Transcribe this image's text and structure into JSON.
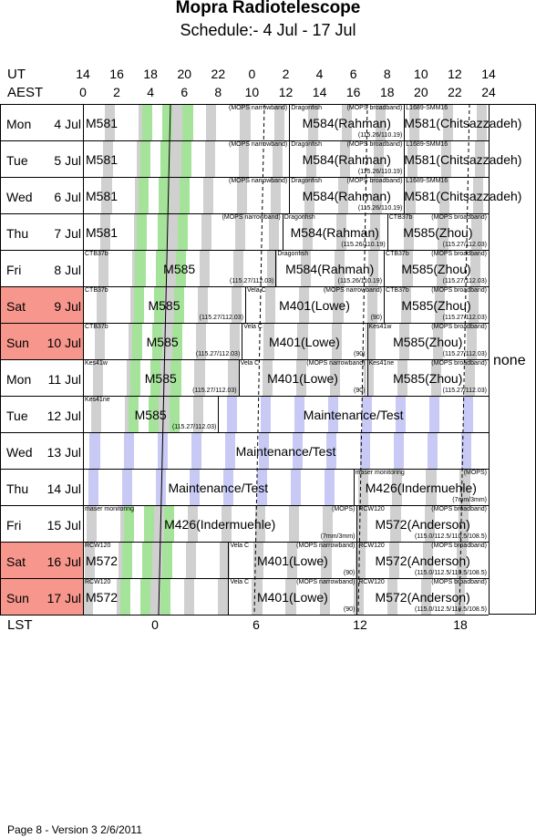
{
  "title": "Mopra Radiotelescope",
  "subtitle": "Schedule:- 4  Jul - 17 Jul",
  "header": {
    "ut_label": "UT",
    "aest_label": "AEST",
    "ut_ticks": [
      "14",
      "16",
      "18",
      "20",
      "22",
      "0",
      "2",
      "4",
      "6",
      "8",
      "10",
      "12",
      "14"
    ],
    "aest_ticks": [
      "0",
      "2",
      "4",
      "6",
      "8",
      "10",
      "12",
      "14",
      "16",
      "18",
      "20",
      "22",
      "24"
    ]
  },
  "colors": {
    "weekend": "#f7968c",
    "green": "#a6e39a",
    "grey": "#d0d0d0",
    "lavender": "#c9c9f5"
  },
  "days": [
    {
      "name": "Mon",
      "date": "4  Jul",
      "weekend": false,
      "segments": [
        {
          "from": 0,
          "to": 12.2,
          "type": "obs",
          "big": "M581",
          "align": "left",
          "tl": "",
          "tr": "(MOPS narrowband)",
          "br": ""
        },
        {
          "from": 12.2,
          "to": 19,
          "type": "obs",
          "big": "M584(Rahman)",
          "tl": "Dragonfish",
          "tr": "(MOPS broadband)",
          "br": "(115.26/110.19)"
        },
        {
          "from": 19,
          "to": 24,
          "type": "obs",
          "big": "M581(Chitsazzadeh)",
          "tl": "L1689-SMM16",
          "tr": "",
          "br": ""
        }
      ]
    },
    {
      "name": "Tue",
      "date": "5  Jul",
      "weekend": false,
      "segments": [
        {
          "from": 0,
          "to": 12.2,
          "type": "obs",
          "big": "M581",
          "align": "left",
          "tl": "",
          "tr": "(MOPS narrowband)",
          "br": ""
        },
        {
          "from": 12.2,
          "to": 19,
          "type": "obs",
          "big": "M584(Rahman)",
          "tl": "Dragonfish",
          "tr": "(MOPS broadband)",
          "br": "(115.26/110.19)"
        },
        {
          "from": 19,
          "to": 24,
          "type": "obs",
          "big": "M581(Chitsazzadeh)",
          "tl": "L1689-SMM16",
          "tr": "",
          "br": ""
        }
      ]
    },
    {
      "name": "Wed",
      "date": "6  Jul",
      "weekend": false,
      "segments": [
        {
          "from": 0,
          "to": 12.2,
          "type": "obs",
          "big": "M581",
          "align": "left",
          "tl": "",
          "tr": "(MOPS narrowband)",
          "br": ""
        },
        {
          "from": 12.2,
          "to": 19,
          "type": "obs",
          "big": "M584(Rahman)",
          "tl": "Dragonfish",
          "tr": "(MOPS broadband)",
          "br": "(115.26/110.19)"
        },
        {
          "from": 19,
          "to": 24,
          "type": "obs",
          "big": "M581(Chitsazzadeh)",
          "tl": "L1689-SMM16",
          "tr": "",
          "br": ""
        }
      ]
    },
    {
      "name": "Thu",
      "date": "7  Jul",
      "weekend": false,
      "segments": [
        {
          "from": 0,
          "to": 11.8,
          "type": "obs",
          "big": "M581",
          "align": "left",
          "tl": "",
          "tr": "(MOPS narrowband)",
          "br": ""
        },
        {
          "from": 11.8,
          "to": 18,
          "type": "obs",
          "big": "M584(Rahman)",
          "tl": "Dragonfish",
          "tr": "",
          "br": "(115.26/110.19)"
        },
        {
          "from": 18,
          "to": 24,
          "type": "obs",
          "big": "M585(Zhou)",
          "tl": "CTB37b",
          "tr": "(MOPS broadband)",
          "br": "(115.27/112.03)"
        }
      ]
    },
    {
      "name": "Fri",
      "date": "8  Jul",
      "weekend": false,
      "segments": [
        {
          "from": 0,
          "to": 11.4,
          "type": "obs",
          "big": "M585",
          "tl": "CTB37b",
          "tr": "",
          "br": "(115.27/112.03)"
        },
        {
          "from": 11.4,
          "to": 17.8,
          "type": "obs",
          "big": "M584(Rahman)",
          "tl": "Dragonfish",
          "tr": "",
          "br": "(115.26/110.19)"
        },
        {
          "from": 17.8,
          "to": 24,
          "type": "obs",
          "big": "M585(Zhou)",
          "tl": "CTB37b",
          "tr": "(MOPS broadband)",
          "br": "(115.27/112.03)"
        }
      ]
    },
    {
      "name": "Sat",
      "date": "9  Jul",
      "weekend": true,
      "segments": [
        {
          "from": 0,
          "to": 9.6,
          "type": "obs",
          "big": "M585",
          "tl": "CTB37b",
          "tr": "",
          "br": "(115.27/112.03)"
        },
        {
          "from": 9.6,
          "to": 17.8,
          "type": "obs",
          "big": "M401(Lowe)",
          "tl": "Vela C",
          "tr": "(MOPS narrowband)",
          "br": "(90)"
        },
        {
          "from": 17.8,
          "to": 24,
          "type": "obs",
          "big": "M585(Zhou)",
          "tl": "CTB37b",
          "tr": "(MOPS broadband)",
          "br": "(115.27/112.03)"
        }
      ]
    },
    {
      "name": "Sun",
      "date": "10 Jul",
      "weekend": true,
      "segments": [
        {
          "from": 0,
          "to": 9.4,
          "type": "obs",
          "big": "M585",
          "tl": "CTB37b",
          "tr": "",
          "br": "(115.27/112.03)"
        },
        {
          "from": 9.4,
          "to": 16.8,
          "type": "obs",
          "big": "M401(Lowe)",
          "tl": "Vela C",
          "tr": "",
          "br": "(90)"
        },
        {
          "from": 16.8,
          "to": 24,
          "type": "obs",
          "big": "M585(Zhou)",
          "tl": "Kes41w",
          "tr": "(MOPS broadband)",
          "br": "(115.27/112.03)"
        }
      ]
    },
    {
      "name": "Mon",
      "date": "11 Jul",
      "weekend": false,
      "segments": [
        {
          "from": 0,
          "to": 9.2,
          "type": "obs",
          "big": "M585",
          "tl": "Kes41w",
          "tr": "",
          "br": "(115.27/112.03)"
        },
        {
          "from": 9.2,
          "to": 16.8,
          "type": "obs",
          "big": "M401(Lowe)",
          "tl": "Vela C",
          "tr": "(MOPS narrowband)",
          "br": "(90)"
        },
        {
          "from": 16.8,
          "to": 24,
          "type": "obs",
          "big": "M585(Zhou)",
          "tl": "Kes41ne",
          "tr": "(MOPS broadband)",
          "br": "(115.27/112.03)"
        }
      ]
    },
    {
      "name": "Tue",
      "date": "12 Jul",
      "weekend": false,
      "segments": [
        {
          "from": 0,
          "to": 8,
          "type": "obs",
          "big": "M585",
          "tl": "Kes41ne",
          "tr": "",
          "br": "(115.27/112.03)"
        },
        {
          "from": 8,
          "to": 24,
          "type": "maint",
          "big": "Maintenance/Test",
          "tl": "",
          "tr": "",
          "br": ""
        }
      ]
    },
    {
      "name": "Wed",
      "date": "13 Jul",
      "weekend": false,
      "segments": [
        {
          "from": 0,
          "to": 24,
          "type": "maint",
          "big": "Maintenance/Test",
          "tl": "",
          "tr": "",
          "br": ""
        }
      ]
    },
    {
      "name": "Thu",
      "date": "14 Jul",
      "weekend": false,
      "segments": [
        {
          "from": 0,
          "to": 16,
          "type": "maint",
          "big": "Maintenance/Test",
          "tl": "",
          "tr": "",
          "br": ""
        },
        {
          "from": 16,
          "to": 24,
          "type": "obs",
          "big": "M426(Indermuehle)",
          "tl": "maser monitoring",
          "tr": "(MOPS)",
          "br": "(7mm/3mm)"
        }
      ]
    },
    {
      "name": "Fri",
      "date": "15 Jul",
      "weekend": false,
      "segments": [
        {
          "from": 0,
          "to": 16.2,
          "type": "obs",
          "big": "M426(Indermuehle)",
          "tl": "maser monitoring",
          "tr": "(MOPS)",
          "br": "(7mm/3mm)"
        },
        {
          "from": 16.2,
          "to": 24,
          "type": "obs",
          "big": "M572(Anderson)",
          "tl": "RCW120",
          "tr": "(MOPS broadband)",
          "br": "(115.0/112.5/110.5/108.5)"
        }
      ]
    },
    {
      "name": "Sat",
      "date": "16 Jul",
      "weekend": true,
      "segments": [
        {
          "from": 0,
          "to": 8.6,
          "type": "obs",
          "big": "M572",
          "align": "left",
          "tl": "RCW120",
          "tr": "",
          "br": ""
        },
        {
          "from": 8.6,
          "to": 16.2,
          "type": "obs",
          "big": "M401(Lowe)",
          "tl": "Vela C",
          "tr": "(MOPS narrowband)",
          "br": "(90)"
        },
        {
          "from": 16.2,
          "to": 24,
          "type": "obs",
          "big": "M572(Anderson)",
          "tl": "RCW120",
          "tr": "(MOPS broadband)",
          "br": "(115.0/112.5/110.5/108.5)"
        }
      ]
    },
    {
      "name": "Sun",
      "date": "17 Jul",
      "weekend": true,
      "segments": [
        {
          "from": 0,
          "to": 8.6,
          "type": "obs",
          "big": "M572",
          "align": "left",
          "tl": "RCW120",
          "tr": "",
          "br": ""
        },
        {
          "from": 8.6,
          "to": 16.2,
          "type": "obs",
          "big": "M401(Lowe)",
          "tl": "Vela C",
          "tr": "(MOPS narrowband)",
          "br": "(90)"
        },
        {
          "from": 16.2,
          "to": 24,
          "type": "obs",
          "big": "M572(Anderson)",
          "tl": "RCW120",
          "tr": "(MOPS broadband)",
          "br": "(115.0/112.5/110.5/108.5)"
        }
      ]
    }
  ],
  "none_label": "none",
  "lst": {
    "label": "LST",
    "ticks": [
      "0",
      "6",
      "12",
      "18"
    ]
  },
  "footer": "Page 8 - Version 3  2/6/2011"
}
